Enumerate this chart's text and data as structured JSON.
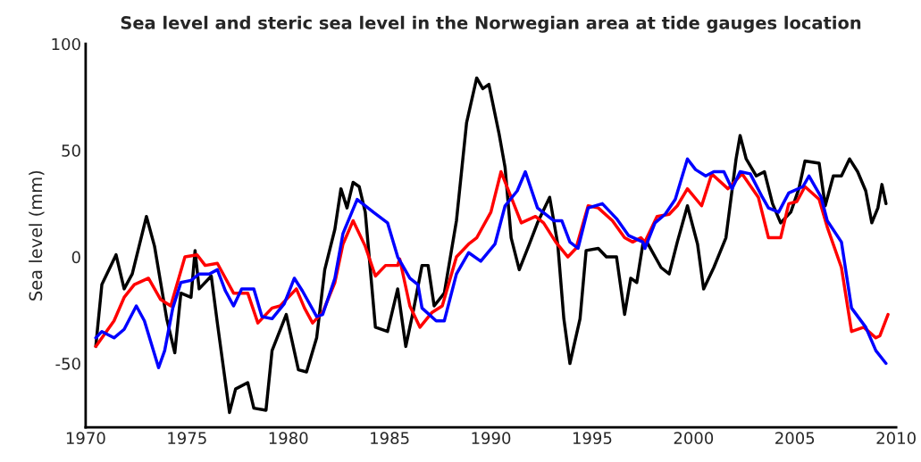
{
  "chart_data": {
    "type": "line",
    "title": "Sea level and steric sea level in the Norwegian area at tide gauges location",
    "ylabel": "Sea level (mm)",
    "xlim": [
      1970,
      2010
    ],
    "xticks": [
      1970,
      1975,
      1980,
      1985,
      1990,
      1995,
      2000,
      2005,
      2010
    ],
    "ylim": [
      -80,
      100
    ],
    "yticks": [
      -50,
      0,
      50,
      100
    ],
    "grid": false,
    "marker": "none",
    "line_style": "solid",
    "series": [
      {
        "color": "#000000",
        "x": [
          1970.5,
          1970.8,
          1971.5,
          1971.9,
          1972.3,
          1973.0,
          1973.4,
          1974.0,
          1974.4,
          1974.7,
          1975.2,
          1975.4,
          1975.6,
          1976.2,
          1976.5,
          1977.1,
          1977.4,
          1978.0,
          1978.3,
          1978.9,
          1979.2,
          1979.9,
          1980.5,
          1980.9,
          1981.4,
          1981.8,
          1982.3,
          1982.6,
          1982.9,
          1983.2,
          1983.5,
          1983.8,
          1984.3,
          1984.9,
          1985.4,
          1985.8,
          1986.2,
          1986.6,
          1986.9,
          1987.2,
          1987.7,
          1988.3,
          1988.8,
          1989.3,
          1989.6,
          1989.9,
          1990.4,
          1990.7,
          1991.0,
          1991.4,
          1991.9,
          1992.3,
          1992.9,
          1993.3,
          1993.6,
          1993.9,
          1994.4,
          1994.7,
          1995.3,
          1995.7,
          1996.2,
          1996.6,
          1996.9,
          1997.2,
          1997.5,
          1997.7,
          1998.4,
          1998.8,
          1999.2,
          1999.7,
          2000.2,
          2000.5,
          2001.0,
          2001.6,
          2002.1,
          2002.3,
          2002.6,
          2003.1,
          2003.5,
          2003.9,
          2004.3,
          2004.8,
          2005.2,
          2005.5,
          2006.2,
          2006.5,
          2006.9,
          2007.3,
          2007.7,
          2008.1,
          2008.5,
          2008.8,
          2009.1,
          2009.3,
          2009.5
        ],
        "values": [
          -42,
          -13,
          1,
          -15,
          -8,
          19,
          5,
          -29,
          -45,
          -17,
          -19,
          3,
          -15,
          -9,
          -31,
          -73,
          -62,
          -59,
          -71,
          -72,
          -44,
          -27,
          -53,
          -54,
          -38,
          -6,
          13,
          32,
          23,
          35,
          33,
          21,
          -33,
          -35,
          -15,
          -42,
          -24,
          -4,
          -4,
          -23,
          -17,
          17,
          63,
          84,
          79,
          81,
          58,
          42,
          9,
          -6,
          6,
          16,
          28,
          6,
          -29,
          -50,
          -29,
          3,
          4,
          0,
          0,
          -27,
          -10,
          -12,
          6,
          7,
          -5,
          -8,
          7,
          24,
          6,
          -15,
          -5,
          9,
          46,
          57,
          46,
          38,
          40,
          25,
          16,
          21,
          32,
          45,
          44,
          24,
          38,
          38,
          46,
          40,
          31,
          16,
          23,
          34,
          25
        ]
      },
      {
        "color": "#ff0000",
        "x": [
          1970.5,
          1971.4,
          1971.9,
          1972.4,
          1973.1,
          1973.7,
          1974.2,
          1974.9,
          1975.5,
          1975.9,
          1976.5,
          1977.3,
          1978.0,
          1978.5,
          1979.2,
          1979.6,
          1980.4,
          1980.8,
          1981.2,
          1981.7,
          1982.3,
          1982.7,
          1983.2,
          1983.8,
          1984.3,
          1984.8,
          1985.4,
          1985.5,
          1986.0,
          1986.5,
          1987.1,
          1987.6,
          1988.3,
          1988.9,
          1989.3,
          1990.0,
          1990.5,
          1991.0,
          1991.5,
          1992.2,
          1992.6,
          1993.2,
          1993.8,
          1994.2,
          1994.8,
          1995.3,
          1996.0,
          1996.6,
          1997.0,
          1997.4,
          1997.6,
          1998.2,
          1998.8,
          1999.2,
          1999.7,
          2000.4,
          2000.9,
          2001.7,
          2002.4,
          2003.2,
          2003.7,
          2004.3,
          2004.7,
          2005.1,
          2005.5,
          2006.2,
          2006.6,
          2007.3,
          2007.8,
          2008.4,
          2009.0,
          2009.2,
          2009.6
        ],
        "values": [
          -42,
          -30,
          -19,
          -13,
          -10,
          -20,
          -23,
          0,
          1,
          -4,
          -3,
          -17,
          -17,
          -31,
          -24,
          -23,
          -15,
          -24,
          -31,
          -26,
          -12,
          6,
          17,
          5,
          -9,
          -4,
          -4,
          -1,
          -23,
          -33,
          -26,
          -23,
          0,
          6,
          9,
          21,
          40,
          28,
          16,
          19,
          16,
          7,
          0,
          4,
          24,
          23,
          17,
          9,
          7,
          9,
          7,
          19,
          20,
          24,
          32,
          24,
          39,
          32,
          39,
          28,
          9,
          9,
          25,
          26,
          33,
          27,
          14,
          -5,
          -35,
          -33,
          -38,
          -37,
          -27
        ]
      },
      {
        "color": "#0000ff",
        "x": [
          1970.5,
          1970.8,
          1971.4,
          1971.9,
          1972.5,
          1972.9,
          1973.6,
          1973.9,
          1974.3,
          1974.7,
          1975.2,
          1975.6,
          1976.1,
          1976.5,
          1976.9,
          1977.3,
          1977.7,
          1978.3,
          1978.7,
          1979.2,
          1979.8,
          1980.3,
          1980.7,
          1981.4,
          1981.7,
          1982.3,
          1982.7,
          1983.4,
          1984.2,
          1984.9,
          1985.4,
          1986.0,
          1986.4,
          1986.6,
          1987.3,
          1987.7,
          1988.3,
          1988.9,
          1989.5,
          1990.2,
          1990.7,
          1991.3,
          1991.7,
          1992.3,
          1993.1,
          1993.5,
          1993.9,
          1994.3,
          1994.8,
          1995.5,
          1996.2,
          1996.8,
          1997.5,
          1997.6,
          1998.1,
          1998.6,
          1999.1,
          1999.7,
          2000.1,
          2000.6,
          2001.0,
          2001.5,
          2001.9,
          2002.3,
          2002.8,
          2003.4,
          2003.7,
          2004.2,
          2004.7,
          2005.4,
          2005.7,
          2006.3,
          2006.6,
          2007.3,
          2007.8,
          2008.5,
          2009.0,
          2009.5
        ],
        "values": [
          -38,
          -35,
          -38,
          -34,
          -23,
          -30,
          -52,
          -44,
          -24,
          -12,
          -11,
          -8,
          -8,
          -6,
          -16,
          -23,
          -15,
          -15,
          -28,
          -29,
          -22,
          -10,
          -16,
          -28,
          -27,
          -10,
          11,
          27,
          21,
          16,
          0,
          -10,
          -13,
          -24,
          -30,
          -30,
          -8,
          2,
          -2,
          6,
          24,
          31,
          40,
          23,
          17,
          17,
          7,
          4,
          23,
          25,
          18,
          10,
          7,
          4,
          16,
          20,
          27,
          46,
          41,
          38,
          40,
          40,
          32,
          40,
          39,
          28,
          23,
          21,
          30,
          33,
          38,
          28,
          17,
          7,
          -24,
          -33,
          -44,
          -50
        ]
      }
    ]
  }
}
